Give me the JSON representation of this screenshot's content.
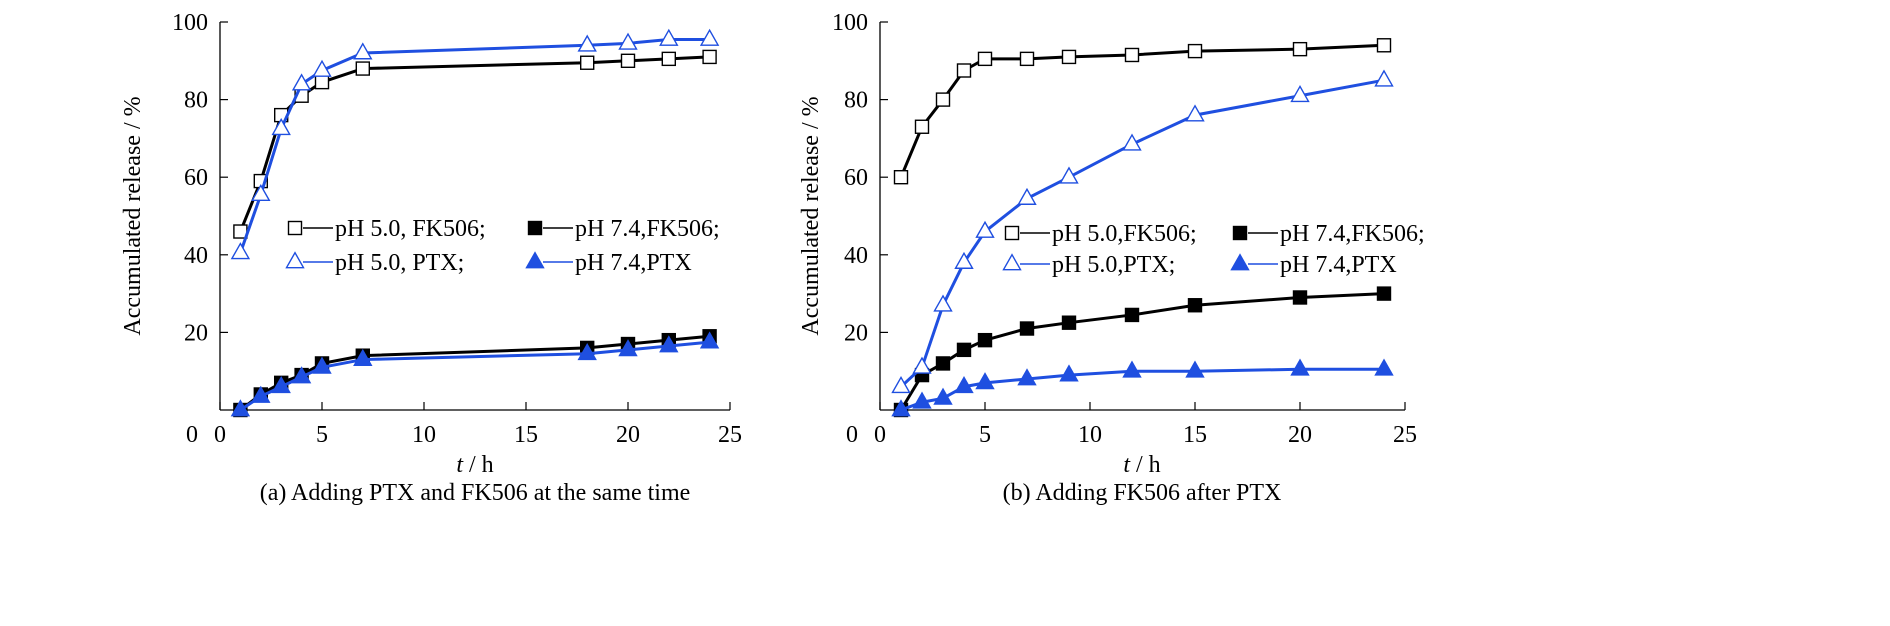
{
  "chart_data": [
    {
      "type": "line",
      "caption": "(a) Adding PTX and FK506 at the same time",
      "xlabel_italic": "t",
      "xlabel_rest": " / h",
      "ylabel": "Accumulated release / %",
      "xlim": [
        0,
        25
      ],
      "ylim": [
        0,
        100
      ],
      "xticks": [
        0,
        5,
        10,
        15,
        20,
        25
      ],
      "yticks": [
        20,
        40,
        60,
        80,
        100
      ],
      "legend_placement": "center-right",
      "series": [
        {
          "name": "pH 5.0, FK506;",
          "marker": "square-open",
          "color": "#000000",
          "x": [
            1,
            2,
            3,
            4,
            5,
            7,
            18,
            20,
            22,
            24
          ],
          "y": [
            46,
            59,
            76,
            81,
            84.5,
            88,
            89.5,
            90,
            90.5,
            91
          ]
        },
        {
          "name": "pH 7.4,FK506;",
          "marker": "square-filled",
          "color": "#000000",
          "x": [
            1,
            2,
            3,
            4,
            5,
            7,
            18,
            20,
            22,
            24
          ],
          "y": [
            0,
            4,
            7,
            9,
            12,
            14,
            16,
            17,
            18,
            19
          ]
        },
        {
          "name": "pH 5.0, PTX;",
          "marker": "triangle-open",
          "color": "#1f4fe0",
          "x": [
            1,
            2,
            3,
            4,
            5,
            7,
            18,
            20,
            22,
            24
          ],
          "y": [
            40.5,
            55.5,
            72.5,
            84,
            87.5,
            92,
            94,
            94.5,
            95.5,
            95.5
          ]
        },
        {
          "name": "pH 7.4,PTX",
          "marker": "triangle-filled",
          "color": "#1f4fe0",
          "x": [
            1,
            2,
            3,
            4,
            5,
            7,
            18,
            20,
            22,
            24
          ],
          "y": [
            0,
            3.5,
            6,
            8.5,
            11,
            13,
            14.5,
            15.5,
            16.5,
            17.5
          ]
        }
      ]
    },
    {
      "type": "line",
      "caption": "(b) Adding FK506 after PTX",
      "xlabel_italic": "t",
      "xlabel_rest": " / h",
      "ylabel": "Accumulated release / %",
      "xlim": [
        0,
        25
      ],
      "ylim": [
        0,
        100
      ],
      "xticks": [
        0,
        5,
        10,
        15,
        20,
        25
      ],
      "yticks": [
        20,
        40,
        60,
        80,
        100
      ],
      "legend_placement": "center-right",
      "series": [
        {
          "name": "pH 5.0,FK506;",
          "marker": "square-open",
          "color": "#000000",
          "x": [
            1,
            2,
            3,
            4,
            5,
            7,
            9,
            12,
            15,
            20,
            24
          ],
          "y": [
            60,
            73,
            80,
            87.5,
            90.5,
            90.5,
            91,
            91.5,
            92.5,
            93,
            94
          ]
        },
        {
          "name": "pH 7.4,FK506;",
          "marker": "square-filled",
          "color": "#000000",
          "x": [
            1,
            2,
            3,
            4,
            5,
            7,
            9,
            12,
            15,
            20,
            24
          ],
          "y": [
            0,
            9,
            12,
            15.5,
            18,
            21,
            22.5,
            24.5,
            27,
            29,
            30
          ]
        },
        {
          "name": "pH 5.0,PTX;",
          "marker": "triangle-open",
          "color": "#1f4fe0",
          "x": [
            1,
            2,
            3,
            4,
            5,
            7,
            9,
            12,
            15,
            20,
            24
          ],
          "y": [
            6,
            11,
            27,
            38,
            46,
            54.5,
            60,
            68.5,
            76,
            81,
            85
          ]
        },
        {
          "name": "pH 7.4,PTX",
          "marker": "triangle-filled",
          "color": "#1f4fe0",
          "x": [
            1,
            2,
            3,
            4,
            5,
            7,
            9,
            12,
            15,
            20,
            24
          ],
          "y": [
            0,
            2,
            3,
            6,
            7,
            8,
            9,
            10,
            10,
            10.5,
            10.5
          ]
        }
      ]
    }
  ]
}
